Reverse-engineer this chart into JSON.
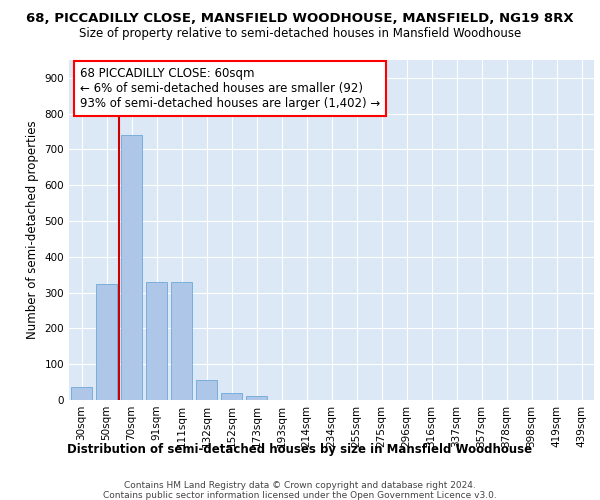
{
  "title1": "68, PICCADILLY CLOSE, MANSFIELD WOODHOUSE, MANSFIELD, NG19 8RX",
  "title2": "Size of property relative to semi-detached houses in Mansfield Woodhouse",
  "xlabel_bottom": "Distribution of semi-detached houses by size in Mansfield Woodhouse",
  "ylabel": "Number of semi-detached properties",
  "categories": [
    "30sqm",
    "50sqm",
    "70sqm",
    "91sqm",
    "111sqm",
    "132sqm",
    "152sqm",
    "173sqm",
    "193sqm",
    "214sqm",
    "234sqm",
    "255sqm",
    "275sqm",
    "296sqm",
    "316sqm",
    "337sqm",
    "357sqm",
    "378sqm",
    "398sqm",
    "419sqm",
    "439sqm"
  ],
  "values": [
    35,
    325,
    740,
    330,
    330,
    55,
    20,
    10,
    0,
    0,
    0,
    0,
    0,
    0,
    0,
    0,
    0,
    0,
    0,
    0,
    0
  ],
  "bar_color": "#aec6e8",
  "bar_edge_color": "#5a9fd4",
  "vline_x": 1.5,
  "vline_color": "#cc0000",
  "annotation_text_line1": "68 PICCADILLY CLOSE: 60sqm",
  "annotation_text_line2": "← 6% of semi-detached houses are smaller (92)",
  "annotation_text_line3": "93% of semi-detached houses are larger (1,402) →",
  "footer1": "Contains HM Land Registry data © Crown copyright and database right 2024.",
  "footer2": "Contains public sector information licensed under the Open Government Licence v3.0.",
  "ylim": [
    0,
    950
  ],
  "yticks": [
    0,
    100,
    200,
    300,
    400,
    500,
    600,
    700,
    800,
    900
  ],
  "background_color": "#dce8f5",
  "title_fontsize": 9.5,
  "subtitle_fontsize": 8.5,
  "tick_fontsize": 7.5,
  "ylabel_fontsize": 8.5,
  "annotation_fontsize": 8.5,
  "footer_fontsize": 6.5
}
